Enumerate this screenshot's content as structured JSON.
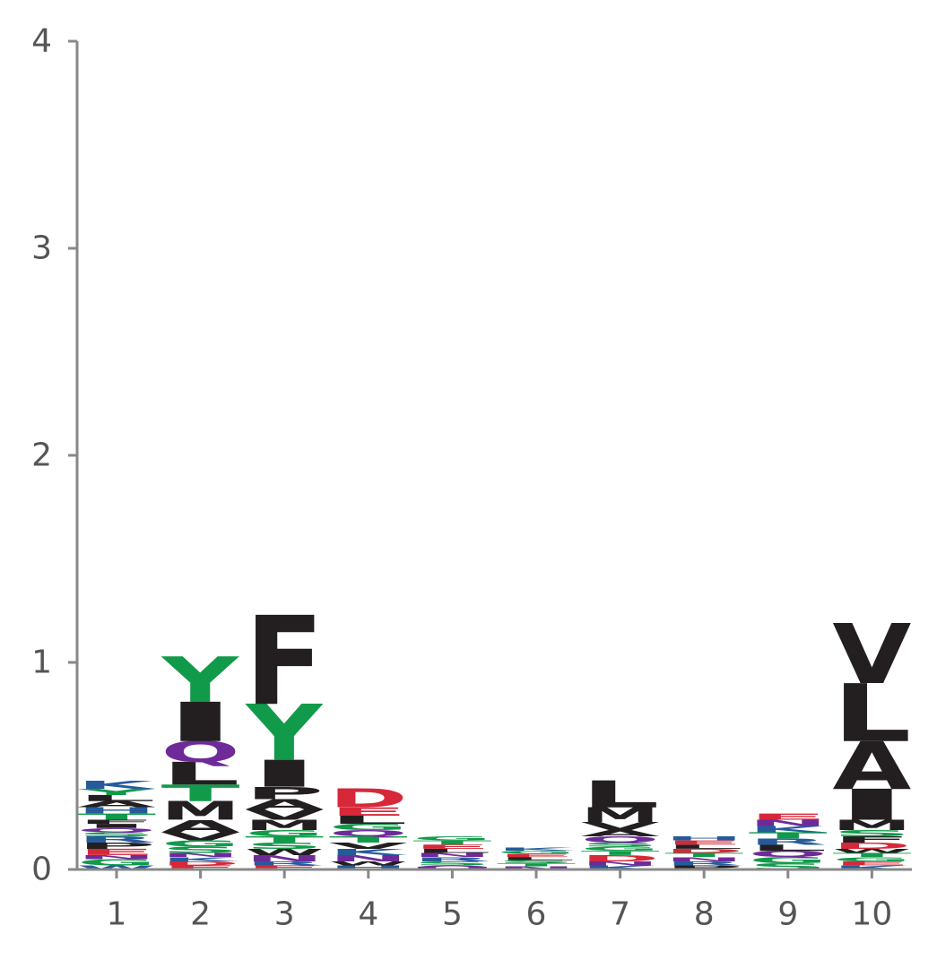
{
  "chart_data": {
    "type": "sequence-logo",
    "title": "",
    "xlabel": "",
    "ylabel": "",
    "ylim": [
      0,
      4
    ],
    "yticks": [
      "0",
      "1",
      "2",
      "3",
      "4"
    ],
    "xticks": [
      "1",
      "2",
      "3",
      "4",
      "5",
      "6",
      "7",
      "8",
      "9",
      "10"
    ],
    "grid": false,
    "colors": {
      "hydrophobic": "#231f20",
      "polar": "#119a4a",
      "amide": "#6f2a9a",
      "acidic": "#d62839",
      "basic": "#255b9b",
      "axis": "#888888",
      "text": "#555555"
    },
    "positions": [
      {
        "position": 1,
        "letters": [
          {
            "letter": "W",
            "height": 0.02,
            "class": "basic"
          },
          {
            "letter": "G",
            "height": 0.03,
            "class": "polar"
          },
          {
            "letter": "N",
            "height": 0.02,
            "class": "amide"
          },
          {
            "letter": "E",
            "height": 0.03,
            "class": "acidic"
          },
          {
            "letter": "P",
            "height": 0.03,
            "class": "hydrophobic"
          },
          {
            "letter": "R",
            "height": 0.03,
            "class": "basic"
          },
          {
            "letter": "S",
            "height": 0.02,
            "class": "polar"
          },
          {
            "letter": "Q",
            "height": 0.02,
            "class": "amide"
          },
          {
            "letter": "I",
            "height": 0.02,
            "class": "hydrophobic"
          },
          {
            "letter": "F",
            "height": 0.02,
            "class": "hydrophobic"
          },
          {
            "letter": "T",
            "height": 0.03,
            "class": "polar"
          },
          {
            "letter": "H",
            "height": 0.03,
            "class": "basic"
          },
          {
            "letter": "A",
            "height": 0.03,
            "class": "hydrophobic"
          },
          {
            "letter": "L",
            "height": 0.03,
            "class": "hydrophobic"
          },
          {
            "letter": "Y",
            "height": 0.03,
            "class": "polar"
          },
          {
            "letter": "K",
            "height": 0.04,
            "class": "basic"
          }
        ]
      },
      {
        "position": 2,
        "letters": [
          {
            "letter": "E",
            "height": 0.02,
            "class": "acidic"
          },
          {
            "letter": "D",
            "height": 0.02,
            "class": "acidic"
          },
          {
            "letter": "K",
            "height": 0.02,
            "class": "basic"
          },
          {
            "letter": "N",
            "height": 0.02,
            "class": "amide"
          },
          {
            "letter": "S",
            "height": 0.03,
            "class": "polar"
          },
          {
            "letter": "G",
            "height": 0.03,
            "class": "polar"
          },
          {
            "letter": "V",
            "height": 0.04,
            "class": "hydrophobic"
          },
          {
            "letter": "A",
            "height": 0.06,
            "class": "hydrophobic"
          },
          {
            "letter": "M",
            "height": 0.09,
            "class": "hydrophobic"
          },
          {
            "letter": "T",
            "height": 0.08,
            "class": "polar"
          },
          {
            "letter": "L",
            "height": 0.11,
            "class": "hydrophobic"
          },
          {
            "letter": "Q",
            "height": 0.1,
            "class": "amide"
          },
          {
            "letter": "I",
            "height": 0.19,
            "class": "hydrophobic"
          },
          {
            "letter": "Y",
            "height": 0.22,
            "class": "polar"
          }
        ]
      },
      {
        "position": 3,
        "letters": [
          {
            "letter": "E",
            "height": 0.02,
            "class": "acidic"
          },
          {
            "letter": "R",
            "height": 0.02,
            "class": "basic"
          },
          {
            "letter": "N",
            "height": 0.03,
            "class": "amide"
          },
          {
            "letter": "W",
            "height": 0.03,
            "class": "hydrophobic"
          },
          {
            "letter": "S",
            "height": 0.03,
            "class": "polar"
          },
          {
            "letter": "T",
            "height": 0.03,
            "class": "polar"
          },
          {
            "letter": "G",
            "height": 0.03,
            "class": "polar"
          },
          {
            "letter": "M",
            "height": 0.05,
            "class": "hydrophobic"
          },
          {
            "letter": "V",
            "height": 0.05,
            "class": "hydrophobic"
          },
          {
            "letter": "A",
            "height": 0.05,
            "class": "hydrophobic"
          },
          {
            "letter": "P",
            "height": 0.06,
            "class": "hydrophobic"
          },
          {
            "letter": "I",
            "height": 0.13,
            "class": "hydrophobic"
          },
          {
            "letter": "Y",
            "height": 0.27,
            "class": "polar"
          },
          {
            "letter": "F",
            "height": 0.43,
            "class": "hydrophobic"
          }
        ]
      },
      {
        "position": 4,
        "letters": [
          {
            "letter": "H",
            "height": 0.02,
            "class": "basic"
          },
          {
            "letter": "W",
            "height": 0.02,
            "class": "hydrophobic"
          },
          {
            "letter": "N",
            "height": 0.03,
            "class": "amide"
          },
          {
            "letter": "K",
            "height": 0.03,
            "class": "basic"
          },
          {
            "letter": "V",
            "height": 0.03,
            "class": "hydrophobic"
          },
          {
            "letter": "T",
            "height": 0.03,
            "class": "polar"
          },
          {
            "letter": "Q",
            "height": 0.03,
            "class": "amide"
          },
          {
            "letter": "G",
            "height": 0.03,
            "class": "polar"
          },
          {
            "letter": "L",
            "height": 0.04,
            "class": "hydrophobic"
          },
          {
            "letter": "E",
            "height": 0.04,
            "class": "acidic"
          },
          {
            "letter": "D",
            "height": 0.09,
            "class": "acidic"
          }
        ]
      },
      {
        "position": 5,
        "letters": [
          {
            "letter": "Q",
            "height": 0.02,
            "class": "amide"
          },
          {
            "letter": "S",
            "height": 0.02,
            "class": "polar"
          },
          {
            "letter": "R",
            "height": 0.02,
            "class": "basic"
          },
          {
            "letter": "N",
            "height": 0.02,
            "class": "amide"
          },
          {
            "letter": "L",
            "height": 0.02,
            "class": "hydrophobic"
          },
          {
            "letter": "E",
            "height": 0.02,
            "class": "acidic"
          },
          {
            "letter": "T",
            "height": 0.02,
            "class": "polar"
          },
          {
            "letter": "G",
            "height": 0.02,
            "class": "polar"
          }
        ]
      },
      {
        "position": 6,
        "letters": [
          {
            "letter": "N",
            "height": 0.015,
            "class": "amide"
          },
          {
            "letter": "T",
            "height": 0.015,
            "class": "polar"
          },
          {
            "letter": "S",
            "height": 0.015,
            "class": "polar"
          },
          {
            "letter": "L",
            "height": 0.015,
            "class": "hydrophobic"
          },
          {
            "letter": "E",
            "height": 0.015,
            "class": "acidic"
          },
          {
            "letter": "G",
            "height": 0.015,
            "class": "polar"
          },
          {
            "letter": "K",
            "height": 0.015,
            "class": "basic"
          }
        ]
      },
      {
        "position": 7,
        "letters": [
          {
            "letter": "K",
            "height": 0.02,
            "class": "basic"
          },
          {
            "letter": "N",
            "height": 0.02,
            "class": "amide"
          },
          {
            "letter": "D",
            "height": 0.03,
            "class": "acidic"
          },
          {
            "letter": "T",
            "height": 0.02,
            "class": "polar"
          },
          {
            "letter": "G",
            "height": 0.02,
            "class": "polar"
          },
          {
            "letter": "S",
            "height": 0.02,
            "class": "polar"
          },
          {
            "letter": "Q",
            "height": 0.03,
            "class": "amide"
          },
          {
            "letter": "A",
            "height": 0.03,
            "class": "hydrophobic"
          },
          {
            "letter": "V",
            "height": 0.04,
            "class": "hydrophobic"
          },
          {
            "letter": "M",
            "height": 0.07,
            "class": "hydrophobic"
          },
          {
            "letter": "L",
            "height": 0.13,
            "class": "hydrophobic"
          }
        ]
      },
      {
        "position": 8,
        "letters": [
          {
            "letter": "P",
            "height": 0.02,
            "class": "hydrophobic"
          },
          {
            "letter": "R",
            "height": 0.02,
            "class": "basic"
          },
          {
            "letter": "N",
            "height": 0.02,
            "class": "amide"
          },
          {
            "letter": "T",
            "height": 0.02,
            "class": "polar"
          },
          {
            "letter": "D",
            "height": 0.02,
            "class": "acidic"
          },
          {
            "letter": "L",
            "height": 0.02,
            "class": "hydrophobic"
          },
          {
            "letter": "E",
            "height": 0.02,
            "class": "acidic"
          },
          {
            "letter": "H",
            "height": 0.02,
            "class": "basic"
          }
        ]
      },
      {
        "position": 9,
        "letters": [
          {
            "letter": "S",
            "height": 0.03,
            "class": "polar"
          },
          {
            "letter": "G",
            "height": 0.03,
            "class": "polar"
          },
          {
            "letter": "Q",
            "height": 0.03,
            "class": "amide"
          },
          {
            "letter": "L",
            "height": 0.03,
            "class": "hydrophobic"
          },
          {
            "letter": "R",
            "height": 0.03,
            "class": "basic"
          },
          {
            "letter": "T",
            "height": 0.03,
            "class": "polar"
          },
          {
            "letter": "K",
            "height": 0.03,
            "class": "basic"
          },
          {
            "letter": "N",
            "height": 0.03,
            "class": "amide"
          },
          {
            "letter": "E",
            "height": 0.03,
            "class": "acidic"
          }
        ]
      },
      {
        "position": 10,
        "letters": [
          {
            "letter": "K",
            "height": 0.02,
            "class": "basic"
          },
          {
            "letter": "E",
            "height": 0.02,
            "class": "acidic"
          },
          {
            "letter": "G",
            "height": 0.02,
            "class": "polar"
          },
          {
            "letter": "T",
            "height": 0.02,
            "class": "polar"
          },
          {
            "letter": "W",
            "height": 0.02,
            "class": "hydrophobic"
          },
          {
            "letter": "D",
            "height": 0.03,
            "class": "acidic"
          },
          {
            "letter": "F",
            "height": 0.03,
            "class": "hydrophobic"
          },
          {
            "letter": "S",
            "height": 0.03,
            "class": "polar"
          },
          {
            "letter": "M",
            "height": 0.05,
            "class": "hydrophobic"
          },
          {
            "letter": "I",
            "height": 0.15,
            "class": "hydrophobic"
          },
          {
            "letter": "A",
            "height": 0.23,
            "class": "hydrophobic"
          },
          {
            "letter": "L",
            "height": 0.28,
            "class": "hydrophobic"
          },
          {
            "letter": "V",
            "height": 0.29,
            "class": "hydrophobic"
          }
        ]
      }
    ]
  }
}
